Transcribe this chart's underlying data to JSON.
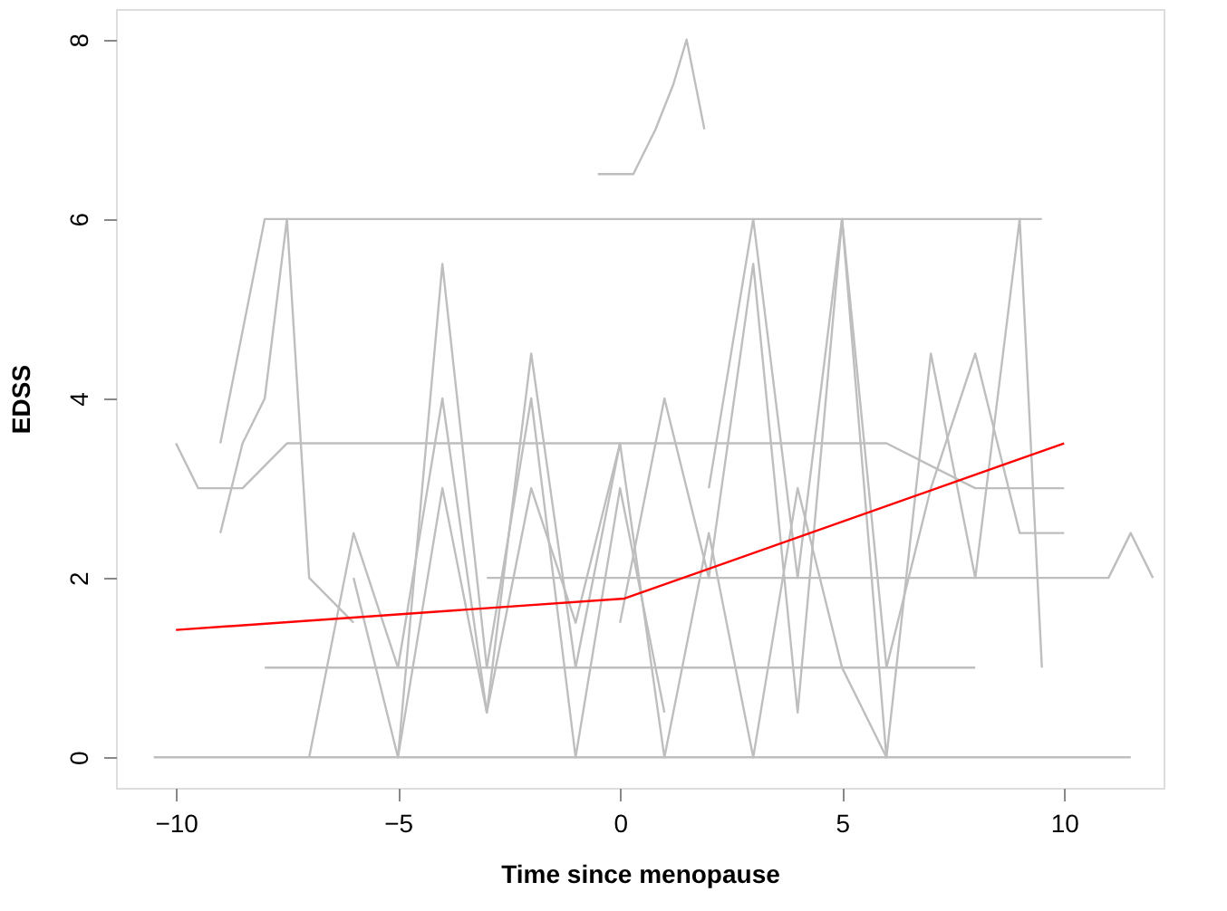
{
  "chart_data": {
    "type": "line",
    "xlabel": "Time since menopause",
    "ylabel": "EDSS",
    "xlim": [
      -11.35,
      12.24
    ],
    "ylim": [
      -0.34,
      8.34
    ],
    "xticks": [
      -10,
      -5,
      0,
      5,
      10
    ],
    "yticks": [
      0,
      2,
      4,
      6,
      8
    ],
    "grid": false,
    "legend": false,
    "series": [
      {
        "color": "#bebebe",
        "x": [
          -10.5,
          11.5
        ],
        "values": [
          0,
          0
        ]
      },
      {
        "color": "#bebebe",
        "x": [
          -0.5,
          0.3,
          0.8,
          1.2,
          1.5,
          1.9
        ],
        "values": [
          6.5,
          6.5,
          7,
          7.5,
          8,
          7
        ]
      },
      {
        "color": "#bebebe",
        "x": [
          -9,
          -8,
          -4,
          0,
          3,
          9.5
        ],
        "values": [
          3.5,
          6,
          6,
          6,
          6,
          6
        ]
      },
      {
        "color": "#bebebe",
        "x": [
          -10,
          -9.5,
          -8.5,
          -7.5,
          -6,
          -4,
          -2,
          0,
          2,
          4,
          6,
          8,
          10
        ],
        "values": [
          3.5,
          3,
          3,
          3.5,
          3.5,
          3.5,
          3.5,
          3.5,
          3.5,
          3.5,
          3.5,
          3,
          3
        ]
      },
      {
        "color": "#bebebe",
        "x": [
          -8,
          -7,
          -6,
          -4,
          -2,
          0,
          2,
          4,
          6,
          8
        ],
        "values": [
          1,
          1,
          1,
          1,
          1,
          1,
          1,
          1,
          1,
          1
        ]
      },
      {
        "color": "#bebebe",
        "x": [
          -6,
          -5,
          -4,
          -3,
          -2,
          -1,
          0,
          1,
          2,
          3,
          4,
          5,
          6
        ],
        "values": [
          2,
          0,
          3,
          0.5,
          4.5,
          1,
          3.5,
          0,
          2.5,
          0,
          3,
          1,
          0
        ]
      },
      {
        "color": "#bebebe",
        "x": [
          -9,
          -8.5,
          -8,
          -7.5,
          -7,
          -6
        ],
        "values": [
          2.5,
          3.5,
          4,
          6,
          2,
          1.5
        ]
      },
      {
        "color": "#bebebe",
        "x": [
          -3,
          -2,
          -1,
          0,
          1,
          2,
          3,
          4,
          5,
          6,
          7,
          8,
          9,
          10,
          11,
          11.5,
          12
        ],
        "values": [
          2,
          2,
          2,
          2,
          2,
          2,
          2,
          2,
          2,
          2,
          2,
          2,
          2,
          2,
          2,
          2.5,
          2
        ]
      },
      {
        "color": "#bebebe",
        "x": [
          0,
          1,
          2,
          3,
          4,
          5,
          6,
          7,
          8,
          9,
          10
        ],
        "values": [
          1.5,
          4,
          2,
          5.5,
          0.5,
          6,
          1,
          3,
          4.5,
          2.5,
          2.5
        ]
      },
      {
        "color": "#bebebe",
        "x": [
          -5,
          -4,
          -3,
          -2,
          -1,
          0,
          1
        ],
        "values": [
          0,
          5.5,
          1,
          4,
          0,
          3,
          0.5
        ]
      },
      {
        "color": "#bebebe",
        "x": [
          2,
          3,
          4,
          5,
          6,
          7,
          8,
          9,
          9.5
        ],
        "values": [
          3,
          6,
          2,
          6,
          0,
          4.5,
          2,
          6,
          1
        ]
      },
      {
        "color": "#bebebe",
        "x": [
          -7,
          -6,
          -5,
          -4,
          -3,
          -2,
          -1,
          0
        ],
        "values": [
          0,
          2.5,
          1,
          4,
          0.5,
          3,
          1.5,
          3.5
        ]
      },
      {
        "color": "#ff0000",
        "x": [
          -10,
          0.1,
          10
        ],
        "values": [
          1.42,
          1.77,
          3.5
        ]
      }
    ]
  }
}
